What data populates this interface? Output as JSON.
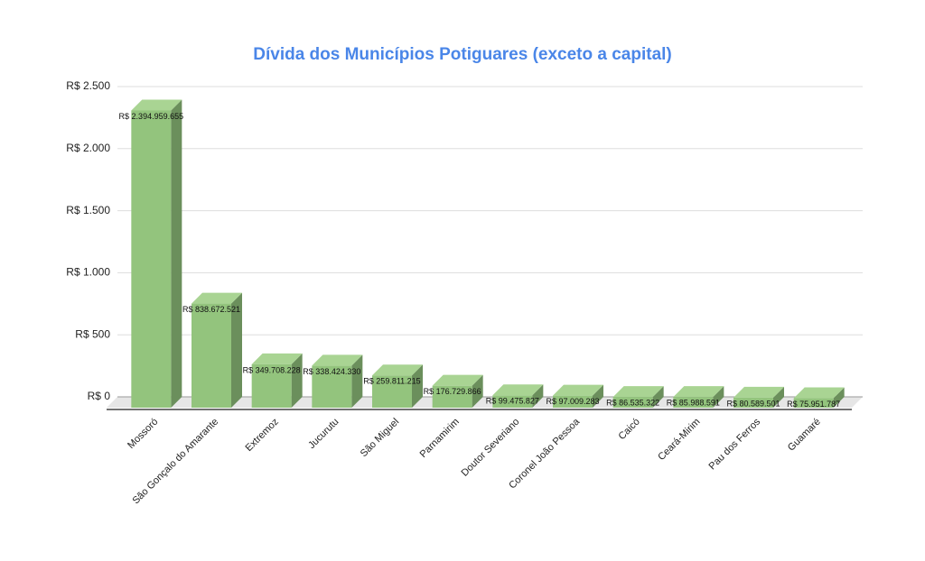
{
  "chart_data": {
    "type": "bar3d",
    "title": "Dívida dos Municípios Potiguares (exceto a capital)",
    "categories": [
      "Mossoró",
      "São Gonçalo do Amarante",
      "Extremoz",
      "Jucurutu",
      "São Miguel",
      "Parnamirim",
      "Doutor Severiano",
      "Coronel João Pessoa",
      "Caicó",
      "Ceará-Mirim",
      "Pau dos Ferros",
      "Guamaré"
    ],
    "values": [
      2394.959655,
      838.672521,
      349.708228,
      338.42433,
      259.811215,
      176.729866,
      99.475827,
      97.009283,
      86.535322,
      85.988591,
      80.589501,
      75.951787
    ],
    "value_labels": [
      "R$ 2.394.959.655",
      "R$ 838.672.521",
      "R$ 349.708.228",
      "R$ 338.424.330",
      "R$ 259.811.215",
      "R$ 176.729.866",
      "R$ 99.475.827",
      "R$ 97.009.283",
      "R$ 86.535.322",
      "R$ 85.988.591",
      "R$ 80.589.501",
      "R$ 75.951.787"
    ],
    "color": "#93c47d",
    "ylim": [
      0,
      2500
    ],
    "yticks": [
      {
        "value": 0,
        "label": "R$ 0"
      },
      {
        "value": 500,
        "label": "R$ 500"
      },
      {
        "value": 1000,
        "label": "R$ 1.000"
      },
      {
        "value": 1500,
        "label": "R$ 1.500"
      },
      {
        "value": 2000,
        "label": "R$ 2.000"
      },
      {
        "value": 2500,
        "label": "R$ 2.500"
      }
    ],
    "grid": true
  }
}
